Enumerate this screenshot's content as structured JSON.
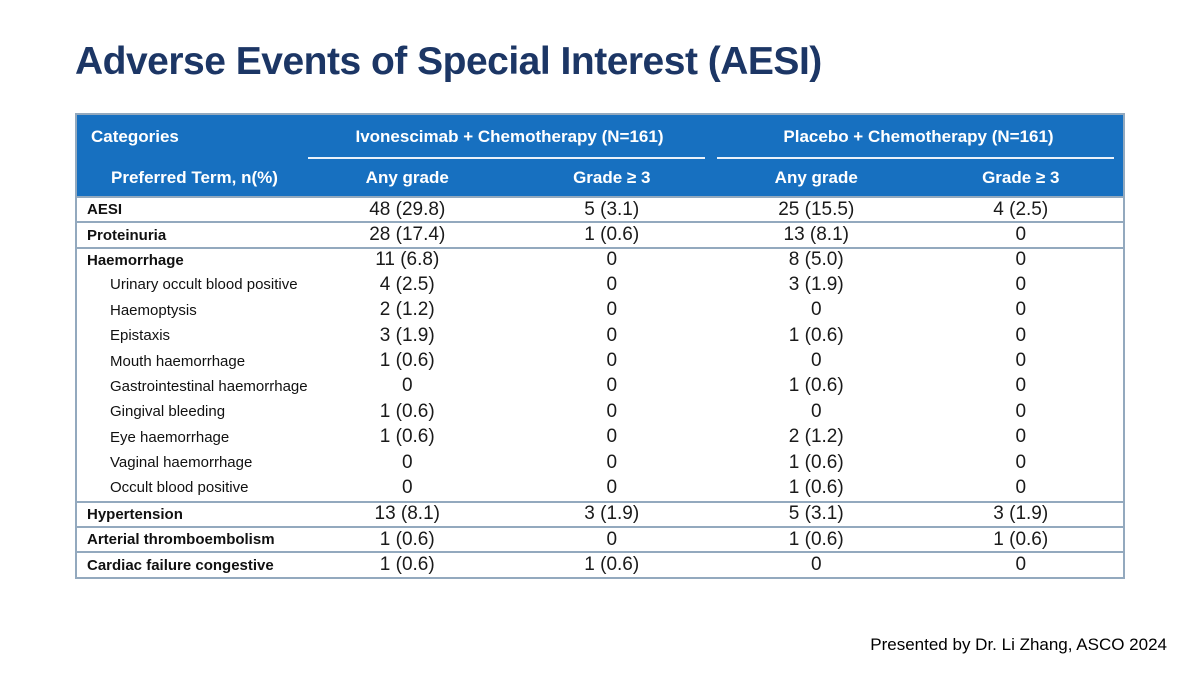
{
  "slide": {
    "title": "Adverse Events of Special Interest (AESI)",
    "footer": "Presented by Dr. Li Zhang, ASCO 2024"
  },
  "colors": {
    "header_bg": "#1770C0",
    "title": "#1C3665",
    "grid_line": "#93A9BE"
  },
  "table": {
    "header": {
      "categories_label": "Categories",
      "preferred_term_label": "Preferred Term, n(%)",
      "groups": [
        {
          "label": "Ivonescimab + Chemotherapy (N=161)"
        },
        {
          "label": "Placebo + Chemotherapy (N=161)"
        }
      ],
      "subheaders": [
        "Any grade",
        "Grade ≥ 3",
        "Any grade",
        "Grade ≥ 3"
      ]
    },
    "rows": [
      {
        "term": "AESI",
        "level": "group",
        "rule": true,
        "values": [
          "48 (29.8)",
          "5 (3.1)",
          "25 (15.5)",
          "4 (2.5)"
        ]
      },
      {
        "term": "Proteinuria",
        "level": "group",
        "rule": true,
        "values": [
          "28 (17.4)",
          "1 (0.6)",
          "13 (8.1)",
          "0"
        ]
      },
      {
        "term": "Haemorrhage",
        "level": "group",
        "rule": true,
        "values": [
          "11 (6.8)",
          "0",
          "8 (5.0)",
          "0"
        ]
      },
      {
        "term": "Urinary occult blood positive",
        "level": "sub",
        "rule": false,
        "values": [
          "4 (2.5)",
          "0",
          "3 (1.9)",
          "0"
        ]
      },
      {
        "term": "Haemoptysis",
        "level": "sub",
        "rule": false,
        "values": [
          "2 (1.2)",
          "0",
          "0",
          "0"
        ]
      },
      {
        "term": "Epistaxis",
        "level": "sub",
        "rule": false,
        "values": [
          "3 (1.9)",
          "0",
          "1 (0.6)",
          "0"
        ]
      },
      {
        "term": "Mouth haemorrhage",
        "level": "sub",
        "rule": false,
        "values": [
          "1 (0.6)",
          "0",
          "0",
          "0"
        ]
      },
      {
        "term": "Gastrointestinal haemorrhage",
        "level": "sub",
        "rule": false,
        "values": [
          "0",
          "0",
          "1 (0.6)",
          "0"
        ]
      },
      {
        "term": "Gingival bleeding",
        "level": "sub",
        "rule": false,
        "values": [
          "1 (0.6)",
          "0",
          "0",
          "0"
        ]
      },
      {
        "term": "Eye haemorrhage",
        "level": "sub",
        "rule": false,
        "values": [
          "1 (0.6)",
          "0",
          "2 (1.2)",
          "0"
        ]
      },
      {
        "term": "Vaginal haemorrhage",
        "level": "sub",
        "rule": false,
        "values": [
          "0",
          "0",
          "1 (0.6)",
          "0"
        ]
      },
      {
        "term": "Occult blood positive",
        "level": "sub",
        "rule": false,
        "values": [
          "0",
          "0",
          "1 (0.6)",
          "0"
        ]
      },
      {
        "term": "Hypertension",
        "level": "group",
        "rule": true,
        "values": [
          "13 (8.1)",
          "3 (1.9)",
          "5 (3.1)",
          "3 (1.9)"
        ]
      },
      {
        "term": "Arterial thromboembolism",
        "level": "group",
        "rule": true,
        "values": [
          "1 (0.6)",
          "0",
          "1 (0.6)",
          "1 (0.6)"
        ]
      },
      {
        "term": "Cardiac failure congestive",
        "level": "group",
        "rule": true,
        "values": [
          "1 (0.6)",
          "1 (0.6)",
          "0",
          "0"
        ]
      }
    ]
  }
}
